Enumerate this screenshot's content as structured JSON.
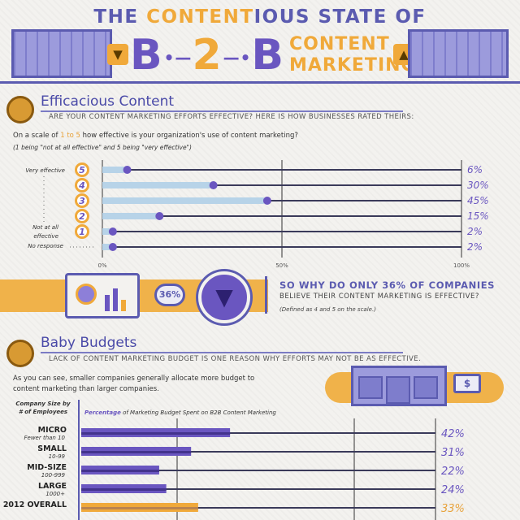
{
  "header": {
    "title_pre": "THE ",
    "title_hl": "CONTENT",
    "title_post": "IOUS STATE OF",
    "b": "B",
    "two": "2",
    "b2": "B",
    "content": "CONTENT",
    "marketing": "MARKETING"
  },
  "section1": {
    "title": "Efficacious Content",
    "subtitle": "ARE YOUR CONTENT MARKETING EFFORTS EFFECTIVE? HERE IS HOW BUSINESSES RATED THEIRS:",
    "question_pre": "On a scale of ",
    "question_hl": "1 to 5",
    "question_post": " how effective is your organization's use of content marketing?",
    "note": "(1 being \"not at all effective\" and 5 being \"very effective\")",
    "label_top": "Very effective",
    "label_bottom_1": "Not at all",
    "label_bottom_2": "effective",
    "label_none": "No response"
  },
  "chart_data": [
    {
      "type": "bar",
      "categories": [
        "5",
        "4",
        "3",
        "2",
        "1",
        "No response"
      ],
      "values": [
        6,
        30,
        45,
        15,
        2,
        2
      ],
      "value_labels": [
        "6%",
        "30%",
        "45%",
        "15%",
        "2%",
        "2%"
      ],
      "x_ticks": [
        "0%",
        "50%",
        "100%"
      ],
      "xlim": [
        0,
        100
      ],
      "grid": true
    },
    {
      "type": "bar",
      "title": "Percentage of Marketing Budget Spent on B2B Content Marketing",
      "ylabel": "Company Size by # of Employees",
      "categories": [
        "MICRO",
        "SMALL",
        "MID-SIZE",
        "LARGE",
        "2012 OVERALL"
      ],
      "category_subs": [
        "Fewer than 10",
        "10-99",
        "100-999",
        "1000+",
        ""
      ],
      "values": [
        42,
        31,
        22,
        24,
        33
      ],
      "value_labels": [
        "42%",
        "31%",
        "22%",
        "24%",
        "33%"
      ],
      "xlim": [
        0,
        100
      ],
      "highlight_index": 4,
      "grid": true
    }
  ],
  "callout": {
    "badge": "36%",
    "question": "SO WHY DO ONLY 36% OF COMPANIES",
    "sub": "BELIEVE THEIR CONTENT MARKETING IS EFFECTIVE?",
    "note": "(Defined as 4 and 5 on the scale.)"
  },
  "section2": {
    "title": "Baby Budgets",
    "subtitle": "LACK OF CONTENT MARKETING BUDGET IS ONE REASON WHY EFFORTS MAY NOT BE AS EFFECTIVE.",
    "intro_1": "As you can see, smaller companies generally allocate more budget to",
    "intro_2": "content marketing than larger companies.",
    "axis_label_1": "Company Size by",
    "axis_label_2": "# of Employees",
    "chart_title_hl": "Percentage",
    "chart_title_rest": " of Marketing Budget Spent on B2B Content Marketing"
  },
  "colors": {
    "purple": "#5b5bb0",
    "violet": "#6a56c0",
    "orange": "#f0a93a",
    "light_blue": "#b7d3e8"
  },
  "icons": [
    "building-icon",
    "thumbs-down-icon",
    "thumbs-up-icon",
    "lightbulb-icon",
    "chart-screen-icon",
    "thumbs-down-circle-icon",
    "storefront-icon",
    "money-icon"
  ]
}
